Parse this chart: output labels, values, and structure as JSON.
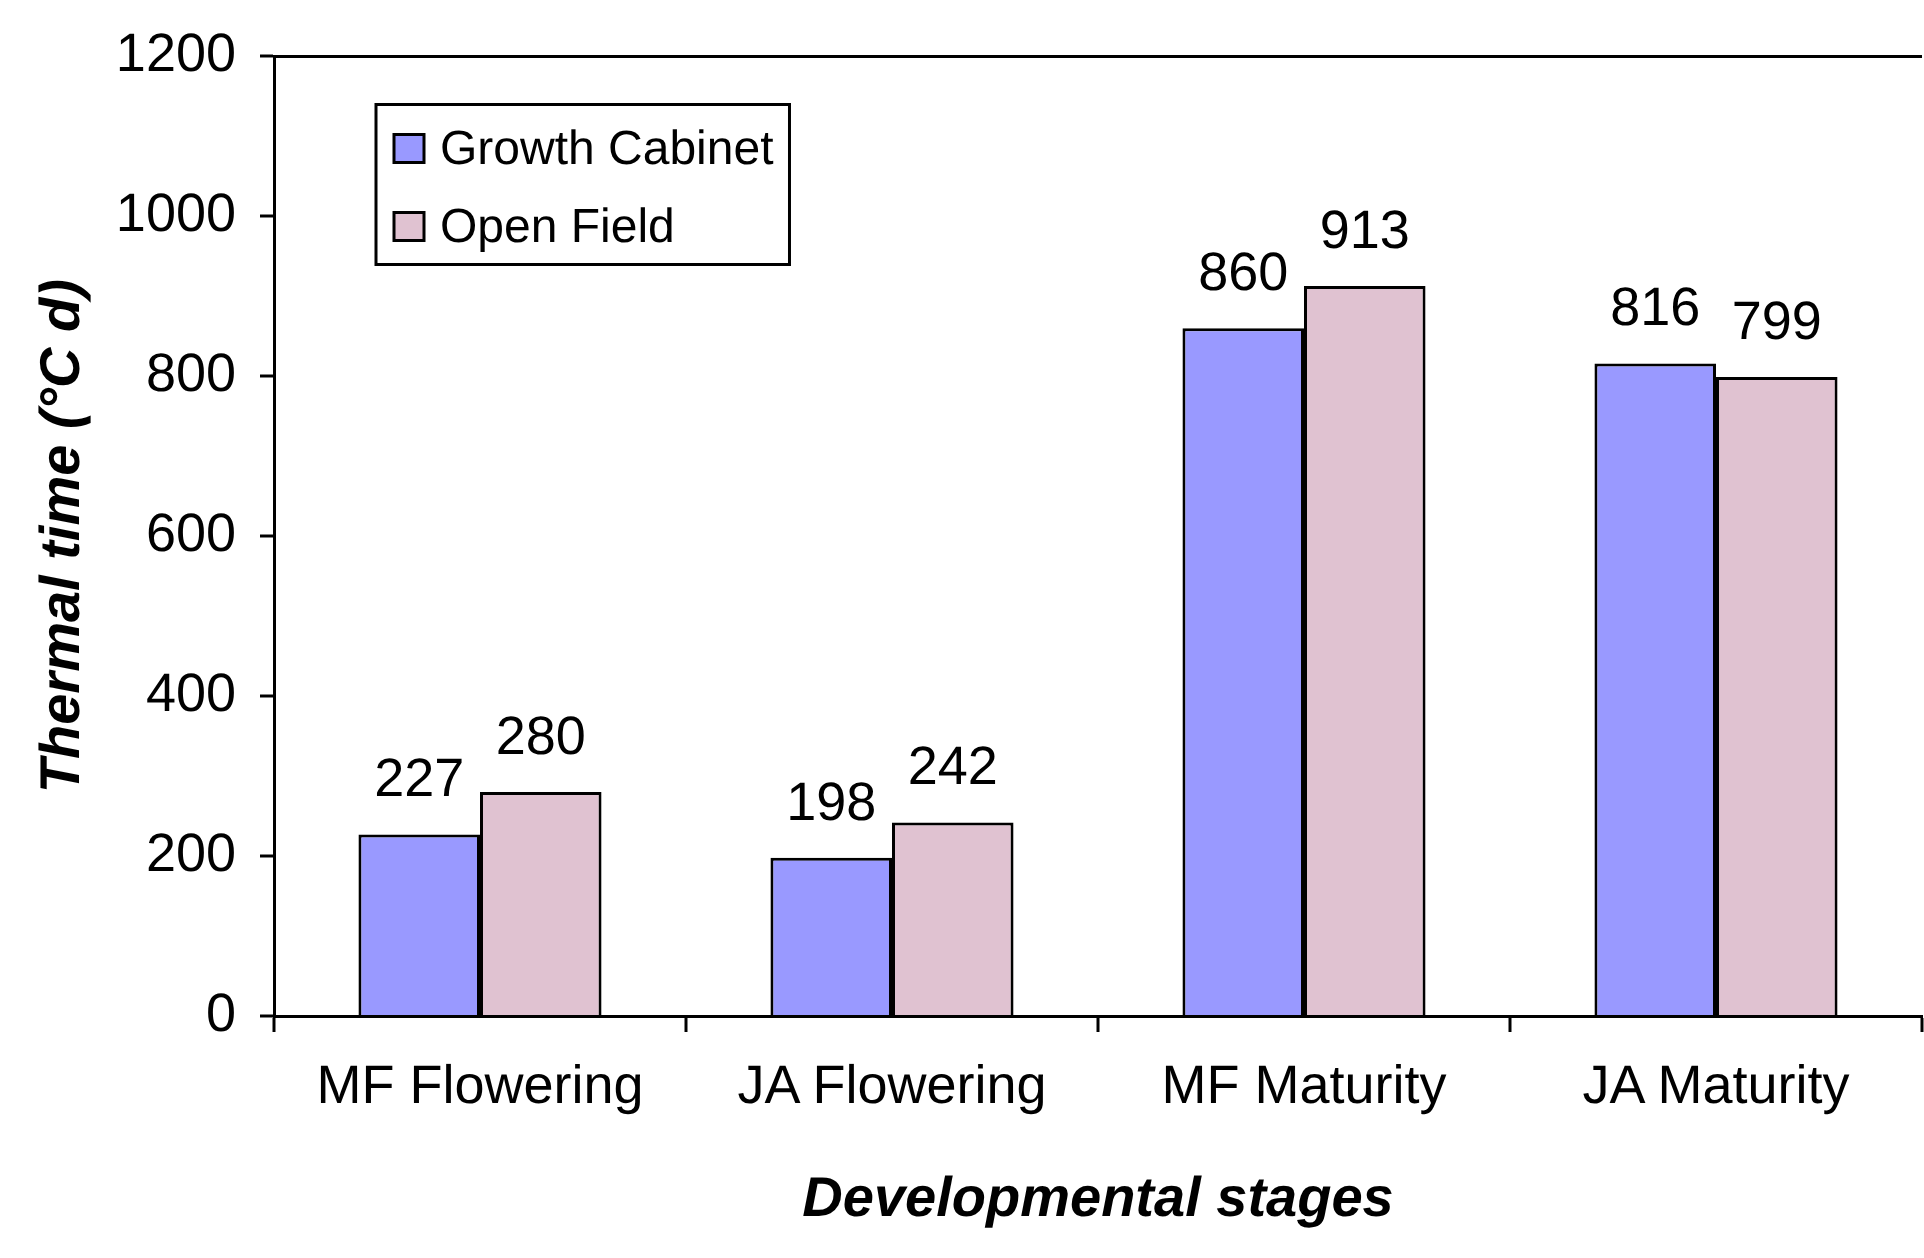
{
  "chart_data": {
    "type": "bar",
    "xlabel": "Developmental stages",
    "ylabel": "Thermal time (°C d)",
    "categories": [
      "MF Flowering",
      "JA Flowering",
      "MF Maturity",
      "JA Maturity"
    ],
    "series": [
      {
        "name": "Growth Cabinet",
        "color": "#9999ff",
        "values": [
          227,
          198,
          860,
          816
        ]
      },
      {
        "name": "Open Field",
        "color": "#e0c2d1",
        "values": [
          280,
          242,
          913,
          799
        ]
      }
    ],
    "ylim": [
      0,
      1200
    ],
    "yticks": [
      0,
      200,
      400,
      600,
      800,
      1000,
      1200
    ],
    "data_labels": true,
    "legend": "top left"
  }
}
